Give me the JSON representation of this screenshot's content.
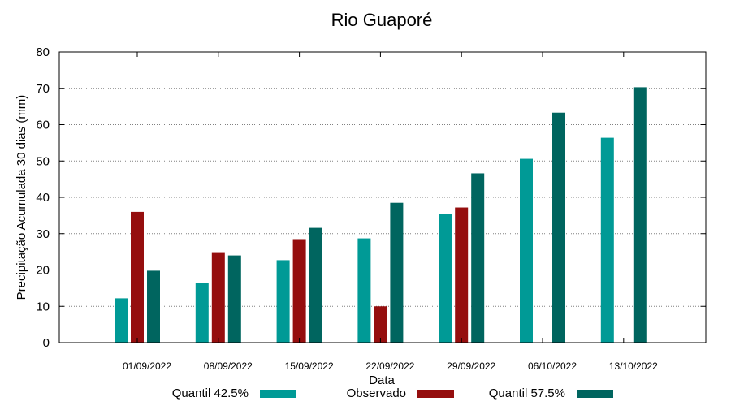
{
  "chart_data": {
    "type": "bar",
    "title": "Rio Guaporé",
    "xlabel": "Data",
    "ylabel": "Precipitação Acumulada 30 dias (mm)",
    "ylim": [
      0,
      80
    ],
    "yticks": [
      0,
      10,
      20,
      30,
      40,
      50,
      60,
      70,
      80
    ],
    "grid": true,
    "legend_position": "bottom",
    "categories": [
      "01/09/2022",
      "08/09/2022",
      "15/09/2022",
      "22/09/2022",
      "29/09/2022",
      "06/10/2022",
      "13/10/2022"
    ],
    "series": [
      {
        "name": "Quantil 42.5%",
        "color": "#009a96",
        "values": [
          12.2,
          16.5,
          22.7,
          28.7,
          35.4,
          50.6,
          56.4
        ]
      },
      {
        "name": "Observado",
        "color": "#950e0e",
        "values": [
          36.0,
          24.9,
          28.5,
          10.0,
          37.2,
          null,
          null
        ]
      },
      {
        "name": "Quantil 57.5%",
        "color": "#00655f",
        "values": [
          19.8,
          24.0,
          31.6,
          38.5,
          46.6,
          63.3,
          70.3
        ]
      }
    ]
  }
}
